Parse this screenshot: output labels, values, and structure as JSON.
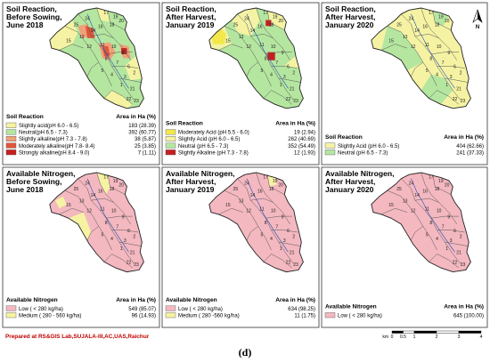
{
  "caption": "(d)",
  "footer": "Prepared at RS&GIS Lab,SUJALA-III,AC,UAS,Raichur",
  "north_label": "N",
  "scale": {
    "ticks": [
      "0",
      "0.5",
      "1",
      "2",
      "3",
      "4"
    ],
    "unit": "km"
  },
  "colors": {
    "slightly_acid": "#f5f3a3",
    "neutral": "#b5e6a0",
    "slightly_alkaline": "#f0a07a",
    "moderately_alkaline": "#e0563b",
    "strongly_alkaline": "#c71f1f",
    "moderately_acid": "#f2e84a",
    "low_n": "#f4b8c0",
    "medium_n": "#f5f3a3"
  },
  "panels": [
    {
      "id": "sr-before",
      "title": [
        "Soil Reaction,",
        "Before Sowing,",
        "June 2018"
      ],
      "legend": {
        "heading": "Soil Reaction",
        "value_heading": "Area in Ha (%)",
        "items": [
          {
            "label": "Slightly acid(pH 6.0 - 6.5)",
            "value": "183 (28.39)",
            "color": "#f5f3a3"
          },
          {
            "label": "Neutral(pH 6.5 - 7.3)",
            "value": "392 (60.77)",
            "color": "#b5e6a0"
          },
          {
            "label": "Slightly alkaline(pH 7.3 - 7.8)",
            "value": "38 (5.87)",
            "color": "#f0a07a"
          },
          {
            "label": "Moderately alkaline(pH 7.8- 8.4)",
            "value": "25 (3.85)",
            "color": "#e0563b"
          },
          {
            "label": "Strongly alkaline(pH 8.4 - 9.0)",
            "value": "7 (1.11)",
            "color": "#c71f1f"
          }
        ]
      }
    },
    {
      "id": "sr-2019",
      "title": [
        "Soil Reaction,",
        "After Harvest,",
        "January 2019"
      ],
      "legend": {
        "heading": "Soil Reaction",
        "value_heading": "Area in Ha (%)",
        "items": [
          {
            "label": "Moderately Acid (pH 5.5 - 6.0)",
            "value": "19 (2.94)",
            "color": "#f2e84a"
          },
          {
            "label": "Slightly Acid (pH 6.0 - 6.5)",
            "value": "262 (40.69)",
            "color": "#f5f3a3"
          },
          {
            "label": "Neutral (pH 6.5 - 7.3)",
            "value": "352 (54.49)",
            "color": "#b5e6a0"
          },
          {
            "label": "Slightly Alkaline (pH 7.3 - 7.8)",
            "value": "12 (1.93)",
            "color": "#c71f1f"
          }
        ]
      }
    },
    {
      "id": "sr-2020",
      "title": [
        "Soil Reaction,",
        "After Harvest,",
        "January 2020"
      ],
      "legend": {
        "heading": "Soil Reaction",
        "value_heading": "Area in Ha (%)",
        "items": [
          {
            "label": "Slightly Acid (pH 6.0 - 6.5)",
            "value": "404 (62.66)",
            "color": "#f5f3a3"
          },
          {
            "label": "Neutral (pH 6.5 - 7.3)",
            "value": "241 (37.33)",
            "color": "#b5e6a0"
          }
        ]
      }
    },
    {
      "id": "an-before",
      "title": [
        "Available Nitrogen,",
        "Before Sowing,",
        "June 2018"
      ],
      "legend": {
        "heading": "Available Nitrogen",
        "value_heading": "Area in Ha (%)",
        "items": [
          {
            "label": "Low ( < 280 kg/ha)",
            "value": "549 (85.07)",
            "color": "#f4b8c0"
          },
          {
            "label": "Medium ( 280 - 560 kg/ha)",
            "value": "96 (14.93)",
            "color": "#f5f3a3"
          }
        ]
      }
    },
    {
      "id": "an-2019",
      "title": [
        "Available Nitrogen,",
        "After Harvest,",
        "January 2019"
      ],
      "legend": {
        "heading": "Available Nitrogen",
        "value_heading": "Area in Ha (%)",
        "items": [
          {
            "label": "Low ( < 280 kg/ha)",
            "value": "634 (98.25)",
            "color": "#f4b8c0"
          },
          {
            "label": "Medium ( 280 -560 kg/ha)",
            "value": "11 (1.75)",
            "color": "#f5f3a3"
          }
        ]
      }
    },
    {
      "id": "an-2020",
      "title": [
        "Available Nitrogen,",
        "After Harvest,",
        "January 2020"
      ],
      "legend": {
        "heading": "Available Nitrogen",
        "value_heading": "Area in Ha (%)",
        "items": [
          {
            "label": "Low ( < 280 kg/ha)",
            "value": "645 (100.00)",
            "color": "#f4b8c0"
          }
        ]
      }
    }
  ],
  "map_labels": [
    "17",
    "19",
    "20",
    "18",
    "16",
    "14",
    "15",
    "13",
    "12",
    "11",
    "10",
    "9",
    "8",
    "7",
    "6",
    "5",
    "4",
    "3",
    "2",
    "1",
    "21",
    "22",
    "23",
    "24",
    "25"
  ]
}
